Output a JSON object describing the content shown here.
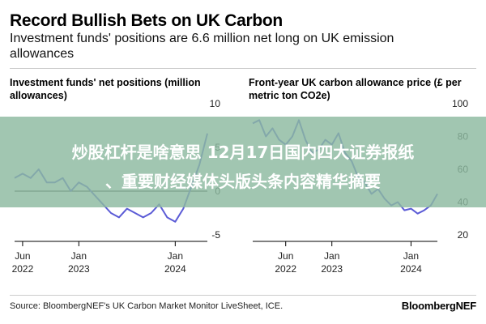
{
  "header": {
    "title": "Record Bullish Bets on UK Carbon",
    "subtitle": "Investment funds' positions are 6.6 million net long on UK emission allowances"
  },
  "overlay": {
    "line1": "炒股杠杆是啥意思 12月17日国内四大证券报纸",
    "line2": "、重要财经媒体头版头条内容精华摘要"
  },
  "footer": {
    "source": "Source: BloombergNEF's UK Carbon Market Monitor LiveSheet, ICE.",
    "brand": "BloombergNEF"
  },
  "colors": {
    "line": "#5b5bd6",
    "zero_line": "#000000",
    "banner": "#8cb9a0"
  },
  "chart_data": [
    {
      "type": "line",
      "title": "Investment funds' net positions (million allowances)",
      "xlabel": "",
      "ylabel": "",
      "ylim": [
        -5,
        10
      ],
      "yticks": [
        -5,
        0,
        5,
        10
      ],
      "xticks": [
        {
          "line1": "Jun",
          "line2": "2022",
          "x": "2022-06"
        },
        {
          "line1": "Jan",
          "line2": "2023",
          "x": "2023-01"
        },
        {
          "line1": "Jan",
          "line2": "2024",
          "x": "2024-01"
        }
      ],
      "xlim": [
        "2022-05",
        "2024-05"
      ],
      "grid": false,
      "series": [
        {
          "x": [
            "2022-05",
            "2022-06",
            "2022-07",
            "2022-08",
            "2022-09",
            "2022-10",
            "2022-11",
            "2022-12",
            "2023-01",
            "2023-02",
            "2023-03",
            "2023-04",
            "2023-05",
            "2023-06",
            "2023-07",
            "2023-08",
            "2023-09",
            "2023-10",
            "2023-11",
            "2023-12",
            "2024-01",
            "2024-02",
            "2024-03",
            "2024-04",
            "2024-05"
          ],
          "values": [
            1.5,
            2.0,
            1.5,
            2.5,
            1.0,
            1.0,
            1.5,
            0.0,
            1.0,
            0.5,
            -0.5,
            -1.5,
            -2.5,
            -3.0,
            -2.0,
            -2.5,
            -3.0,
            -2.5,
            -1.5,
            -3.0,
            -3.5,
            -2.0,
            0.5,
            3.0,
            6.6
          ]
        }
      ]
    },
    {
      "type": "line",
      "title": "Front-year UK carbon allowance price (£ per metric ton CO2e)",
      "xlabel": "",
      "ylabel": "",
      "ylim": [
        20,
        100
      ],
      "yticks": [
        20,
        40,
        60,
        80,
        100
      ],
      "xticks": [
        {
          "line1": "Jun",
          "line2": "2022",
          "x": "2022-06"
        },
        {
          "line1": "Jan",
          "line2": "2023",
          "x": "2023-01"
        },
        {
          "line1": "Jan",
          "line2": "2024",
          "x": "2024-01"
        }
      ],
      "xlim": [
        "2022-01",
        "2024-05"
      ],
      "grid": false,
      "series": [
        {
          "x": [
            "2022-01",
            "2022-02",
            "2022-03",
            "2022-04",
            "2022-05",
            "2022-06",
            "2022-07",
            "2022-08",
            "2022-09",
            "2022-10",
            "2022-11",
            "2022-12",
            "2023-01",
            "2023-02",
            "2023-03",
            "2023-04",
            "2023-05",
            "2023-06",
            "2023-07",
            "2023-08",
            "2023-09",
            "2023-10",
            "2023-11",
            "2023-12",
            "2024-01",
            "2024-02",
            "2024-03",
            "2024-04",
            "2024-05"
          ],
          "values": [
            88,
            90,
            80,
            85,
            78,
            75,
            80,
            90,
            78,
            70,
            72,
            78,
            75,
            82,
            70,
            65,
            55,
            52,
            45,
            48,
            42,
            38,
            40,
            35,
            36,
            33,
            35,
            38,
            45
          ]
        }
      ]
    }
  ]
}
